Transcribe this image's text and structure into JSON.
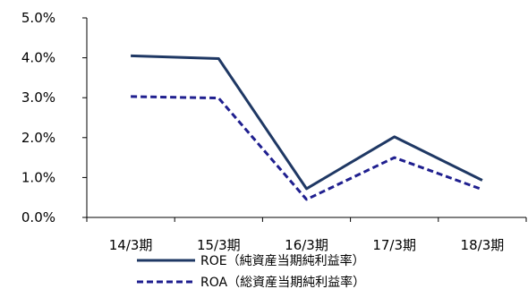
{
  "chart_data": {
    "type": "line",
    "categories": [
      "14/3期",
      "15/3期",
      "16/3期",
      "17/3期",
      "18/3期"
    ],
    "series": [
      {
        "name": "ROE（純資産当期純利益率）",
        "values": [
          4.05,
          3.98,
          0.72,
          2.02,
          0.93
        ],
        "color": "#1f3864",
        "style": "solid"
      },
      {
        "name": "ROA（総資産当期純利益率）",
        "values": [
          3.03,
          2.99,
          0.45,
          1.5,
          0.7
        ],
        "color": "#1f1f8f",
        "style": "dashed"
      }
    ],
    "y_tick_labels": [
      "0.0%",
      "1.0%",
      "2.0%",
      "3.0%",
      "4.0%",
      "5.0%"
    ],
    "ylim": [
      0,
      5
    ],
    "unit": "%",
    "grid": false,
    "legend_position": "bottom"
  }
}
